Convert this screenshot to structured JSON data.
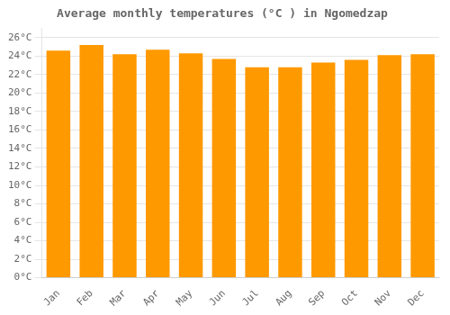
{
  "chart_data": {
    "type": "bar",
    "title": "Average monthly temperatures (°C ) in Ngomedzap",
    "categories": [
      "Jan",
      "Feb",
      "Mar",
      "Apr",
      "May",
      "Jun",
      "Jul",
      "Aug",
      "Sep",
      "Oct",
      "Nov",
      "Dec"
    ],
    "values": [
      24.6,
      25.2,
      24.2,
      24.7,
      24.3,
      23.7,
      22.8,
      22.8,
      23.3,
      23.6,
      24.1,
      24.2
    ],
    "color": "#FF9900",
    "ylim": [
      0,
      27
    ],
    "yticks": [
      {
        "value": 0,
        "label": "0°C"
      },
      {
        "value": 2,
        "label": "2°C"
      },
      {
        "value": 4,
        "label": "4°C"
      },
      {
        "value": 6,
        "label": "6°C"
      },
      {
        "value": 8,
        "label": "8°C"
      },
      {
        "value": 10,
        "label": "10°C"
      },
      {
        "value": 12,
        "label": "12°C"
      },
      {
        "value": 14,
        "label": "14°C"
      },
      {
        "value": 16,
        "label": "16°C"
      },
      {
        "value": 18,
        "label": "18°C"
      },
      {
        "value": 20,
        "label": "20°C"
      },
      {
        "value": 22,
        "label": "22°C"
      },
      {
        "value": 24,
        "label": "24°C"
      },
      {
        "value": 26,
        "label": "26°C"
      }
    ],
    "grid": true
  }
}
